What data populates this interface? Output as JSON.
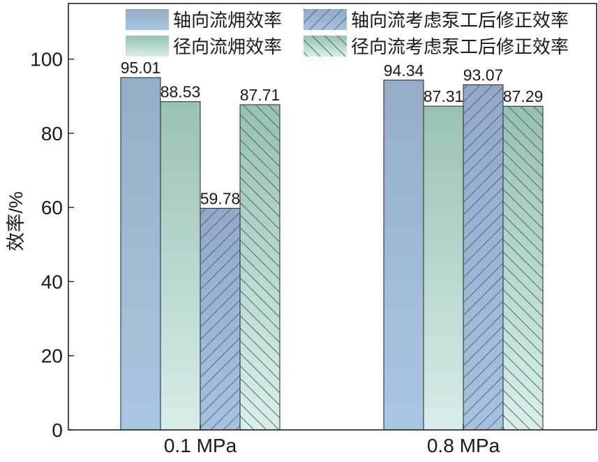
{
  "chart_data": {
    "type": "bar",
    "categories": [
      "0.1 MPa",
      "0.8 MPa"
    ],
    "series": [
      {
        "name": "轴向流㶲效率",
        "values": [
          95.01,
          94.34
        ],
        "color": "#9fb8d3",
        "hatch": "none"
      },
      {
        "name": "径向流㶲效率",
        "values": [
          88.53,
          87.31
        ],
        "color": "#a7cdc3",
        "hatch": "none"
      },
      {
        "name": "轴向流考虑泵工后修正效率",
        "values": [
          59.78,
          93.07
        ],
        "color": "#9fb3d3",
        "hatch": "forward"
      },
      {
        "name": "径向流考虑泵工后修正效率",
        "values": [
          87.71,
          87.29
        ],
        "color": "#a7cdc3",
        "hatch": "back"
      }
    ],
    "data_labels": [
      [
        "95.01",
        "94.34"
      ],
      [
        "88.53",
        "87.31"
      ],
      [
        "59.78",
        "93.07"
      ],
      [
        "87.71",
        "87.29"
      ]
    ],
    "ylabel": "效率/%",
    "xlabel": "",
    "ylim": [
      0,
      115
    ],
    "yticks": [
      0,
      20,
      40,
      60,
      80,
      100
    ],
    "ytick_labels": [
      "0",
      "20",
      "40",
      "60",
      "80",
      "100"
    ],
    "legend_position": "top",
    "grid": false
  }
}
